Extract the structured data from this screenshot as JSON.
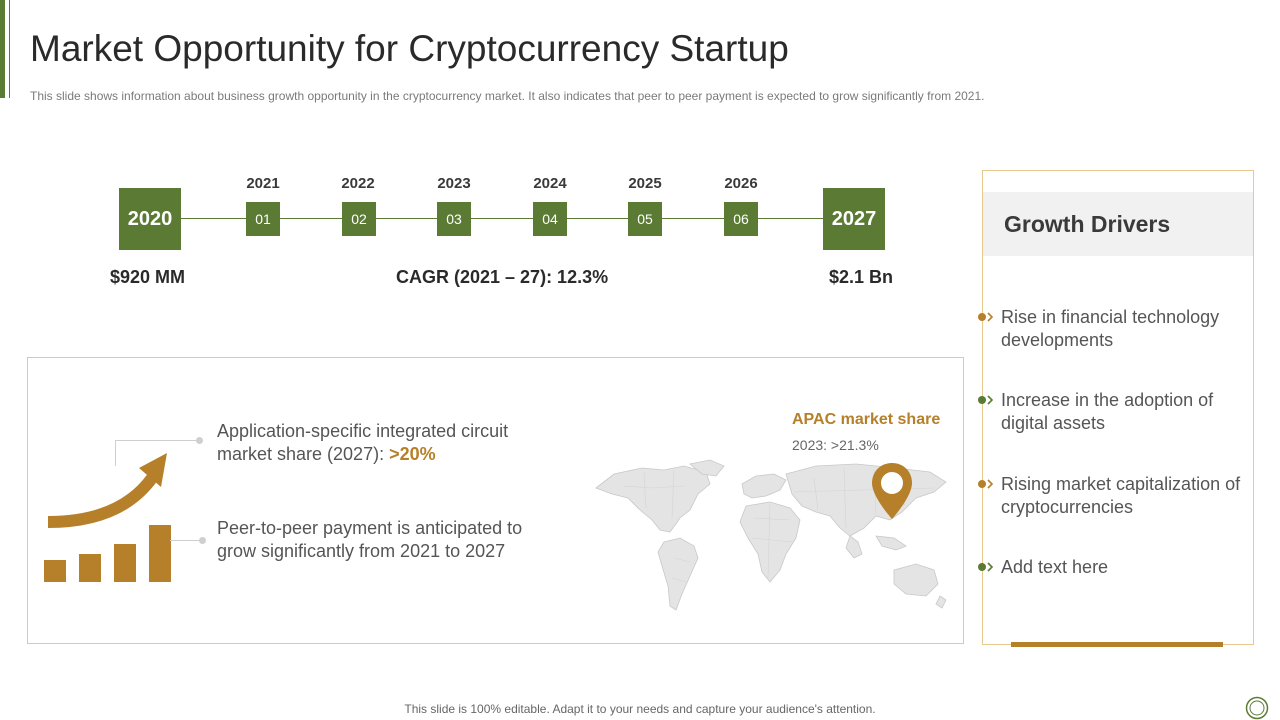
{
  "header": {
    "title": "Market Opportunity for Cryptocurrency Startup",
    "subtitle": "This slide shows information about business growth opportunity in the cryptocurrency market. It also indicates that peer to peer payment is expected to grow significantly from 2021."
  },
  "timeline": {
    "start_year": "2020",
    "end_year": "2027",
    "steps": [
      {
        "year": "2021",
        "num": "01"
      },
      {
        "year": "2022",
        "num": "02"
      },
      {
        "year": "2023",
        "num": "03"
      },
      {
        "year": "2024",
        "num": "04"
      },
      {
        "year": "2025",
        "num": "05"
      },
      {
        "year": "2026",
        "num": "06"
      }
    ],
    "start_value": "$920 MM",
    "cagr": "CAGR (2021 – 27): 12.3%",
    "end_value": "$2.1 Bn"
  },
  "stats": {
    "asic_text": "Application-specific integrated circuit market share (2027): ",
    "asic_value": ">20%",
    "p2p_text": "Peer-to-peer payment is anticipated to grow significantly from 2021 to 2027"
  },
  "apac": {
    "title": "APAC market share",
    "value": "2023: >21.3%"
  },
  "drivers": {
    "title": "Growth Drivers",
    "items": [
      "Rise in financial technology developments",
      "Increase in the adoption of digital assets",
      "Rising market capitalization of cryptocurrencies",
      "Add text here"
    ]
  },
  "colors": {
    "green": "#5b7b34",
    "gold": "#b6802a",
    "border": "#e8c98d"
  },
  "footer": "This slide is 100% editable. Adapt it to your needs and capture your audience's attention."
}
